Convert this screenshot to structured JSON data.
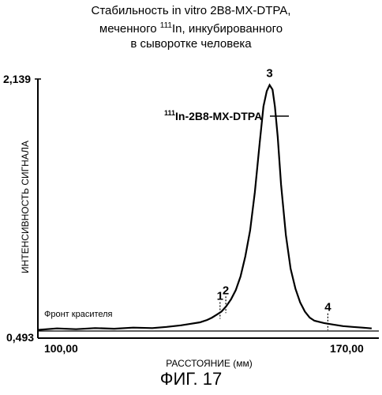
{
  "chart_data": {
    "type": "line",
    "title": {
      "line1": "Стабильность in vitro 2B8-MX-DTPA,",
      "line2_pre": "меченного ",
      "line2_sup": "111",
      "line2_post": "In, инкубированного",
      "line3": "в сыворотке человека"
    },
    "xlabel": "РАССТОЯНИЕ (мм)",
    "ylabel": "ИНТЕНСИВНОСТЬ СИГНАЛА",
    "xlim": [
      100,
      170
    ],
    "ylim": [
      0.493,
      2.139
    ],
    "x_tick_labels": [
      "100,00",
      "170,00"
    ],
    "y_tick_labels": [
      "0,493",
      "2,139"
    ],
    "grid": false,
    "series": [
      {
        "points": [
          [
            100.0,
            0.5
          ],
          [
            104.0,
            0.51
          ],
          [
            108.0,
            0.505
          ],
          [
            112.0,
            0.512
          ],
          [
            116.0,
            0.508
          ],
          [
            120.0,
            0.515
          ],
          [
            124.0,
            0.512
          ],
          [
            127.0,
            0.52
          ],
          [
            130.0,
            0.53
          ],
          [
            132.0,
            0.54
          ],
          [
            134.0,
            0.55
          ],
          [
            135.5,
            0.565
          ],
          [
            136.5,
            0.58
          ],
          [
            137.5,
            0.6
          ],
          [
            138.5,
            0.62
          ],
          [
            139.5,
            0.655
          ],
          [
            140.5,
            0.7
          ],
          [
            141.5,
            0.76
          ],
          [
            142.5,
            0.85
          ],
          [
            143.5,
            0.98
          ],
          [
            144.5,
            1.15
          ],
          [
            145.5,
            1.4
          ],
          [
            146.5,
            1.72
          ],
          [
            147.3,
            1.96
          ],
          [
            148.0,
            2.06
          ],
          [
            148.6,
            2.1
          ],
          [
            149.2,
            2.07
          ],
          [
            149.7,
            1.96
          ],
          [
            150.3,
            1.76
          ],
          [
            151.0,
            1.45
          ],
          [
            152.0,
            1.12
          ],
          [
            153.0,
            0.9
          ],
          [
            154.0,
            0.77
          ],
          [
            155.0,
            0.68
          ],
          [
            156.0,
            0.62
          ],
          [
            157.0,
            0.58
          ],
          [
            158.0,
            0.56
          ],
          [
            160.0,
            0.545
          ],
          [
            162.0,
            0.535
          ],
          [
            164.0,
            0.525
          ],
          [
            166.0,
            0.52
          ],
          [
            168.0,
            0.515
          ],
          [
            170.0,
            0.51
          ]
        ]
      }
    ],
    "peaks": [
      {
        "label": "1",
        "x": 138.2
      },
      {
        "label": "2",
        "x": 139.4
      },
      {
        "label": "3",
        "x": 148.6
      },
      {
        "label": "4",
        "x": 160.8
      }
    ],
    "annotations": {
      "peak_name_sup": "111",
      "peak_name": "In-2B8-MX-DTPA",
      "solvent_front": "Фронт красителя"
    },
    "figure_label": "ФИГ. 17"
  }
}
